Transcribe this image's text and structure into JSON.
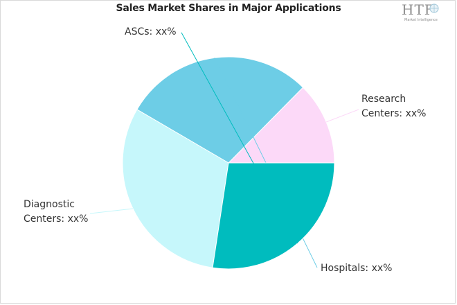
{
  "chart_data": {
    "type": "pie",
    "title": "Sales Market Shares in Major Applications",
    "slices": [
      {
        "label": [
          "Research",
          "Centers: xx%"
        ],
        "value": 12.6,
        "color": "#fcd9f8"
      },
      {
        "label": [
          "Hospitals: xx%"
        ],
        "value": 29.0,
        "color": "#6dcde6"
      },
      {
        "label": [
          "Diagnostic",
          "Centers: xx%"
        ],
        "value": 31.0,
        "color": "#c6f7fb"
      },
      {
        "label": [
          "ASCs: xx%"
        ],
        "value": 27.4,
        "color": "#00bcbe"
      }
    ],
    "start_angle_deg": 0,
    "legend": "none",
    "label_placement": "outside-with-leader-lines"
  },
  "logo": {
    "text": "HTF",
    "subtext": "Market Intelligence"
  }
}
